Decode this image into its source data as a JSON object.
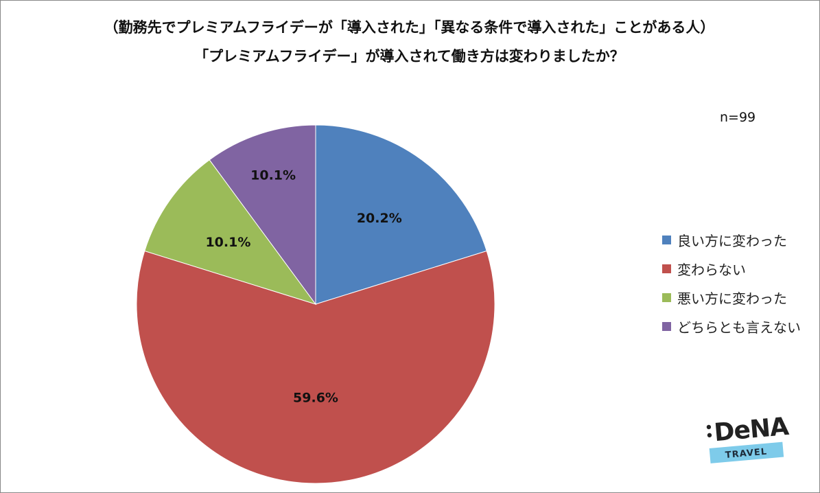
{
  "title": {
    "line1": "（勤務先でプレミアムフライデーが「導入された」「異なる条件で導入された」ことがある人）",
    "line2": "「プレミアムフライデー」が導入されて働き方は変わりましたか？"
  },
  "sample_size": "n=99",
  "chart_data": {
    "type": "pie",
    "title": "（勤務先でプレミアムフライデーが「導入された」「異なる条件で導入された」ことがある人）「プレミアムフライデー」が導入されて働き方は変わりましたか？",
    "categories": [
      "良い方に変わった",
      "変わらない",
      "悪い方に変わった",
      "どちらとも言えない"
    ],
    "values": [
      20.2,
      59.6,
      10.1,
      10.1
    ],
    "labels": [
      "20.2%",
      "59.6%",
      "10.1%",
      "10.1%"
    ],
    "colors": [
      "#4f81bd",
      "#c0504d",
      "#9bbb59",
      "#8064a2"
    ],
    "start_angle": "12 o'clock",
    "direction": "clockwise",
    "legend_placement": "right"
  },
  "logo": {
    "brand": "DeNA",
    "sub": "TRAVEL",
    "accent": "#7ecbea"
  }
}
